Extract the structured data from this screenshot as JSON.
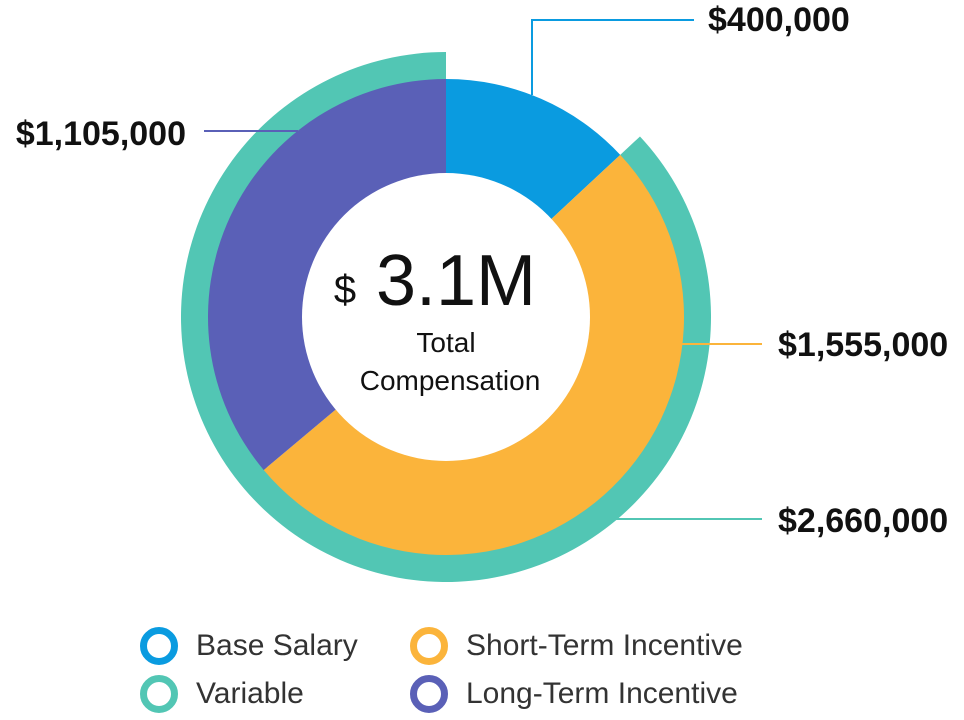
{
  "chart_data": {
    "type": "donut",
    "center": {
      "symbol": "$",
      "value": "3.1M",
      "caption_line1": "Total",
      "caption_line2": "Compensation"
    },
    "inner_ring": [
      {
        "name": "Base Salary",
        "value": 400000,
        "label": "$400,000",
        "color": "#0A9BE0"
      },
      {
        "name": "Short-Term Incentive",
        "value": 1555000,
        "label": "$1,555,000",
        "color": "#FBB43B"
      },
      {
        "name": "Long-Term Incentive",
        "value": 1105000,
        "label": "$1,105,000",
        "color": "#5A60B7"
      }
    ],
    "outer_ring": [
      {
        "name": "Variable",
        "value": 2660000,
        "label": "$2,660,000",
        "color": "#52C6B4",
        "spans": [
          "Short-Term Incentive",
          "Long-Term Incentive"
        ]
      }
    ],
    "legend": [
      {
        "name": "Base Salary",
        "color": "#0A9BE0"
      },
      {
        "name": "Short-Term Incentive",
        "color": "#FBB43B"
      },
      {
        "name": "Variable",
        "color": "#52C6B4"
      },
      {
        "name": "Long-Term Incentive",
        "color": "#5A60B7"
      }
    ]
  }
}
